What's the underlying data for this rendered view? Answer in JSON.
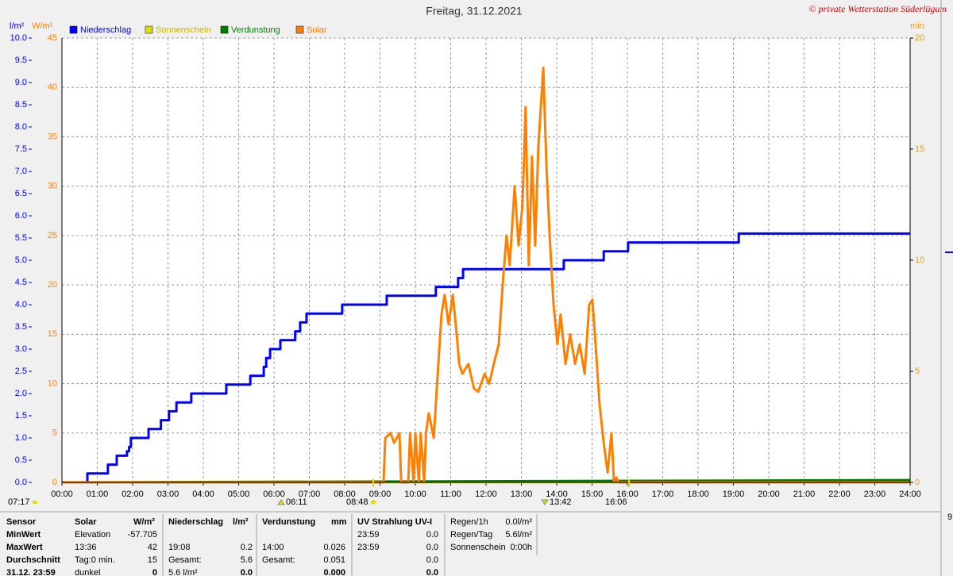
{
  "chart_data": {
    "type": "line",
    "title": "Freitag, 31.12.2021",
    "copyright": "© private Wetterstation Süderlügum",
    "y_label": "l/m²",
    "y2_label": "W/m²",
    "y3_label": "min",
    "xlim": [
      0,
      24
    ],
    "xticks": [
      {
        "value": 0,
        "label": "00:00"
      },
      {
        "value": 1,
        "label": "01:00"
      },
      {
        "value": 2,
        "label": "02:00"
      },
      {
        "value": 3,
        "label": "03:00"
      },
      {
        "value": 4,
        "label": "04:00"
      },
      {
        "value": 5,
        "label": "05:00"
      },
      {
        "value": 6,
        "label": "06:00"
      },
      {
        "value": 7,
        "label": "07:00"
      },
      {
        "value": 8,
        "label": "08:00"
      },
      {
        "value": 9,
        "label": "09:00"
      },
      {
        "value": 10,
        "label": "10:00"
      },
      {
        "value": 11,
        "label": "11:00"
      },
      {
        "value": 12,
        "label": "12:00"
      },
      {
        "value": 13,
        "label": "13:00"
      },
      {
        "value": 14,
        "label": "14:00"
      },
      {
        "value": 15,
        "label": "15:00"
      },
      {
        "value": 16,
        "label": "16:00"
      },
      {
        "value": 17,
        "label": "17:00"
      },
      {
        "value": 18,
        "label": "18:00"
      },
      {
        "value": 19,
        "label": "19:00"
      },
      {
        "value": 20,
        "label": "20:00"
      },
      {
        "value": 21,
        "label": "21:00"
      },
      {
        "value": 22,
        "label": "22:00"
      },
      {
        "value": 23,
        "label": "23:00"
      },
      {
        "value": 24,
        "label": "24:00"
      }
    ],
    "ylim": [
      0,
      10
    ],
    "yticks": [
      {
        "value": 0,
        "label": "0.0"
      },
      0.5,
      {
        "value": 1,
        "label": "1.0"
      },
      1.5,
      {
        "value": 2,
        "label": "2.0"
      },
      2.5,
      {
        "value": 3,
        "label": "3.0"
      },
      3.5,
      {
        "value": 4,
        "label": "4.0"
      },
      4.5,
      {
        "value": 5,
        "label": "5.0"
      },
      5.5,
      {
        "value": 6,
        "label": "6.0"
      },
      6.5,
      {
        "value": 7,
        "label": "7.0"
      },
      7.5,
      {
        "value": 8,
        "label": "8.0"
      },
      8.5,
      {
        "value": 9,
        "label": "9.0"
      },
      9.5,
      {
        "value": 10,
        "label": "10.0"
      }
    ],
    "y2lim": [
      0,
      45
    ],
    "y2ticks": [
      0,
      5,
      10,
      15,
      20,
      25,
      30,
      35,
      40,
      45
    ],
    "y3lim": [
      0,
      20
    ],
    "y3ticks": [
      0,
      5,
      10,
      15,
      20
    ],
    "grid": true,
    "series": [
      {
        "name": "Niederschlag",
        "color": "#0000ff",
        "axis": "y",
        "step": true,
        "x": [
          0,
          0.72,
          1.3,
          1.55,
          1.84,
          1.9,
          1.95,
          2.45,
          2.8,
          3.03,
          3.24,
          3.66,
          4.65,
          5.33,
          5.71,
          5.78,
          5.89,
          6.18,
          6.6,
          6.74,
          6.92,
          7.93,
          9.19,
          10.58,
          11.21,
          11.35,
          14.2,
          15.33,
          16.02,
          19.15,
          24
        ],
        "values": [
          0,
          0.2,
          0.4,
          0.6,
          0.7,
          0.8,
          1.0,
          1.2,
          1.4,
          1.6,
          1.8,
          2.0,
          2.2,
          2.4,
          2.6,
          2.8,
          3.0,
          3.2,
          3.4,
          3.6,
          3.8,
          4.0,
          4.2,
          4.4,
          4.6,
          4.8,
          5.0,
          5.2,
          5.4,
          5.6,
          5.6
        ]
      },
      {
        "name": "Sonnenschein",
        "color": "#e0e000",
        "axis": "y3",
        "x": [
          0,
          24
        ],
        "values": [
          0,
          0
        ]
      },
      {
        "name": "Verdunstung",
        "color": "#008000",
        "axis": "y",
        "x": [
          0,
          24
        ],
        "values": [
          0,
          0.051
        ]
      },
      {
        "name": "Solar",
        "color": "#ff8000",
        "axis": "y2",
        "x": [
          0,
          9.1,
          9.15,
          9.3,
          9.4,
          9.55,
          9.6,
          9.8,
          9.85,
          9.95,
          10.0,
          10.1,
          10.15,
          10.25,
          10.3,
          10.38,
          10.52,
          10.65,
          10.74,
          10.83,
          10.94,
          11.06,
          11.17,
          11.24,
          11.33,
          11.5,
          11.66,
          11.78,
          11.96,
          12.09,
          12.22,
          12.36,
          12.47,
          12.58,
          12.67,
          12.81,
          12.92,
          13.03,
          13.12,
          13.21,
          13.3,
          13.39,
          13.48,
          13.62,
          13.71,
          13.8,
          13.91,
          14.02,
          14.11,
          14.25,
          14.38,
          14.52,
          14.65,
          14.79,
          14.92,
          15.01,
          15.1,
          15.21,
          15.33,
          15.44,
          15.55,
          15.62,
          15.69,
          15.75,
          24
        ],
        "values": [
          0,
          0,
          4.5,
          5,
          4,
          5,
          0,
          0,
          5,
          0,
          5,
          0,
          5,
          0,
          5,
          7,
          4.5,
          12,
          17,
          19,
          16,
          19,
          15,
          12,
          11,
          12,
          9.5,
          9.2,
          11,
          10,
          12,
          14,
          20,
          25,
          22,
          30,
          24,
          28,
          38,
          22,
          33,
          24,
          34,
          42,
          32,
          25,
          18,
          14,
          17,
          12,
          15,
          12,
          14,
          11,
          18,
          18.5,
          14,
          8,
          4,
          1,
          5,
          0,
          0.5,
          0,
          0
        ]
      }
    ],
    "sun_labels": [
      "07:17",
      "06:11",
      "08:48",
      "13:42",
      "16:06"
    ]
  },
  "stats": {
    "row_labels": [
      "Sensor",
      "MinWert",
      "MaxWert",
      "Durchschnitt",
      "31.12. 23:59"
    ],
    "groups": [
      {
        "name": "Solar",
        "unit": "W/m²",
        "rows": [
          [
            "Elevation",
            "-57.705"
          ],
          [
            "13:36",
            "42"
          ],
          [
            "Tag:0 min.",
            "15"
          ],
          [
            "dunkel",
            "0"
          ]
        ]
      },
      {
        "name": "Niederschlag",
        "unit": "l/m²",
        "rows": [
          [
            null,
            null
          ],
          [
            "19:08",
            "0.2"
          ],
          [
            "Gesamt:",
            "5.6"
          ],
          [
            "5.6 l/m²",
            "0.0"
          ]
        ]
      },
      {
        "name": "Verdunstung",
        "unit": "mm",
        "rows": [
          [
            null,
            null
          ],
          [
            "14:00",
            "0.026"
          ],
          [
            "Gesamt:",
            "0.051"
          ],
          [
            null,
            "0.000"
          ]
        ]
      },
      {
        "name": "UV Strahlung UV-I",
        "unit": null,
        "rows": [
          [
            "23:59",
            "0.0"
          ],
          [
            "23:59",
            "0.0"
          ],
          [
            null,
            "0.0"
          ],
          [
            null,
            "0.0"
          ]
        ]
      }
    ],
    "extra": [
      [
        "Regen/1h",
        "0.0l/m²"
      ],
      [
        "Regen/Tag",
        "5.6l/m²"
      ],
      [
        "Sonnenschein",
        "0:00h"
      ]
    ],
    "side": "9"
  }
}
